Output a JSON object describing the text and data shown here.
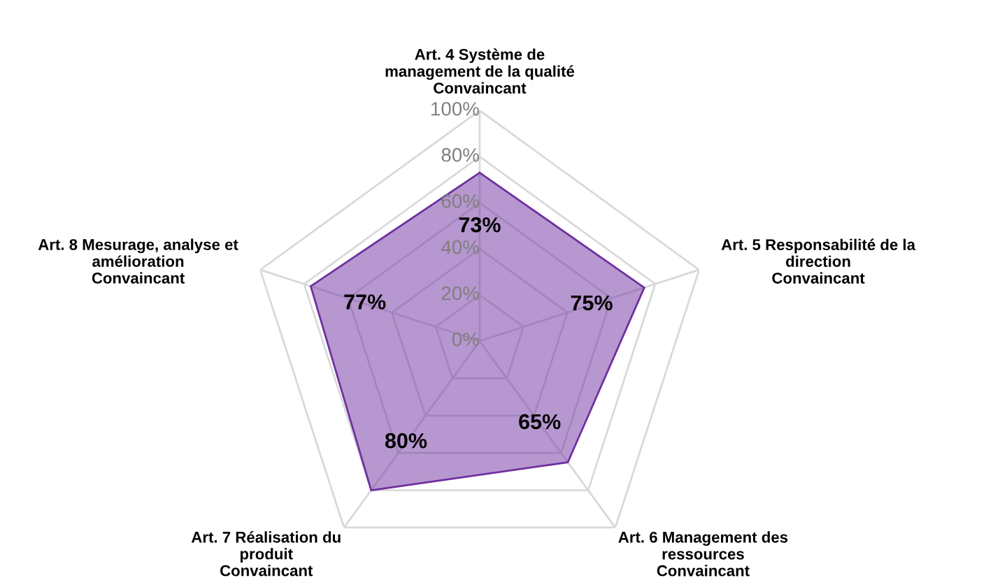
{
  "chart_data": {
    "type": "radar",
    "categories": [
      "Art. 4 Système de\nmanagement de la qualité\nConvaincant",
      "Art. 5 Responsabilité de la\ndirection\nConvaincant",
      "Art. 6 Management des\nressources\nConvaincant",
      "Art. 7 Réalisation du\nproduit\nConvaincant",
      "Art. 8 Mesurage, analyse et\namélioration\nConvaincant"
    ],
    "series": [
      {
        "color": "#7030a0",
        "values": [
          73,
          75,
          65,
          80,
          77
        ],
        "value_labels": [
          "73%",
          "75%",
          "65%",
          "80%",
          "77%"
        ]
      }
    ],
    "ylim": [
      0,
      100
    ],
    "yticks": [
      {
        "value": 0,
        "label": "0%"
      },
      {
        "value": 20,
        "label": "20%"
      },
      {
        "value": 40,
        "label": "40%"
      },
      {
        "value": 60,
        "label": "60%"
      },
      {
        "value": 80,
        "label": "80%"
      },
      {
        "value": 100,
        "label": "100%"
      }
    ],
    "grid": true,
    "marker": "none",
    "line_style": "solid"
  }
}
